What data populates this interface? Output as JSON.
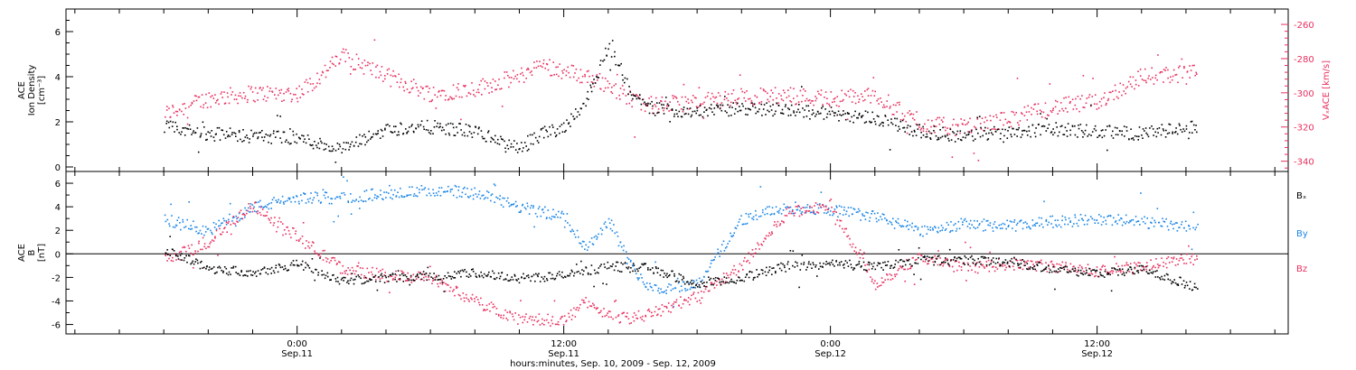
{
  "colors": {
    "black": "#000000",
    "pink": "#e8305f",
    "blue": "#1a85e6"
  },
  "xaxis": {
    "title": "hours:minutes, Sep. 10, 2009 - Sep. 12, 2009",
    "ticks": [
      {
        "time": "0:00",
        "date": "Sep.11"
      },
      {
        "time": "12:00",
        "date": "Sep.11"
      },
      {
        "time": "0:00",
        "date": "Sep.12"
      },
      {
        "time": "12:00",
        "date": "Sep.12"
      }
    ]
  },
  "chart_data": [
    {
      "type": "scatter",
      "panel": "top",
      "ylabel_left": [
        "ACE",
        "Ion Density",
        "[cm⁻³]"
      ],
      "ylabel_right": "VₓACE [km/s]",
      "ylim_left": [
        -0.2,
        7.0
      ],
      "yticks_left": [
        "0",
        "2",
        "4",
        "6"
      ],
      "ylim_right": [
        -346,
        -251
      ],
      "yticks_right": [
        "-260",
        "-280",
        "-300",
        "-320",
        "-340"
      ],
      "series": [
        {
          "name": "Ion Density",
          "color": "black",
          "axis": "left",
          "x_hours": [
            -6,
            -4,
            -2,
            0,
            2,
            4,
            6,
            8,
            10,
            11,
            12,
            13,
            14,
            14.5,
            15,
            16,
            18,
            20,
            22,
            24,
            26,
            28,
            30,
            32,
            34,
            36,
            38,
            40.5
          ],
          "y": [
            1.8,
            1.5,
            1.4,
            1.3,
            0.8,
            1.7,
            1.8,
            1.6,
            0.8,
            1.5,
            1.8,
            3.0,
            5.4,
            4.5,
            3.2,
            2.6,
            2.5,
            2.6,
            2.6,
            2.4,
            2.2,
            1.6,
            1.4,
            1.6,
            1.7,
            1.6,
            1.5,
            1.8
          ]
        },
        {
          "name": "Vx",
          "color": "pink",
          "axis": "right",
          "x_hours": [
            -6,
            -4,
            -2,
            0,
            1,
            2,
            4,
            6,
            8,
            10,
            11,
            12,
            13,
            14,
            15,
            16,
            18,
            20,
            22,
            24,
            26,
            28,
            30,
            32,
            34,
            36,
            38,
            40.5
          ],
          "y": [
            -312,
            -303,
            -300,
            -300,
            -290,
            -278,
            -290,
            -300,
            -297,
            -290,
            -283,
            -287,
            -290,
            -295,
            -303,
            -307,
            -305,
            -302,
            -301,
            -303,
            -301,
            -318,
            -320,
            -315,
            -308,
            -305,
            -290,
            -288
          ]
        }
      ]
    },
    {
      "type": "scatter",
      "panel": "bottom",
      "ylabel_left": [
        "ACE",
        "B",
        "[nT]"
      ],
      "ylim": [
        -6.8,
        7.0
      ],
      "yticks": [
        "6",
        "4",
        "2",
        "0",
        "-2",
        "-4",
        "-6"
      ],
      "zero_line": true,
      "legend": [
        "Bₓ",
        "By",
        "Bz"
      ],
      "series": [
        {
          "name": "Bx",
          "color": "black",
          "x_hours": [
            -6,
            -4,
            -2,
            0,
            2,
            4,
            6,
            8,
            10,
            12,
            14,
            16,
            18,
            20,
            22,
            24,
            26,
            28,
            30,
            32,
            34,
            36,
            38,
            40.5
          ],
          "y": [
            0.5,
            -1.2,
            -1.5,
            -0.8,
            -2.2,
            -2.0,
            -1.8,
            -1.6,
            -2.0,
            -1.8,
            -1.0,
            -1.2,
            -2.6,
            -2.0,
            -1.0,
            -0.8,
            -1.0,
            -0.5,
            -0.5,
            -0.6,
            -1.2,
            -1.6,
            -1.3,
            -2.8
          ]
        },
        {
          "name": "By",
          "color": "blue",
          "x_hours": [
            -6,
            -4,
            -2,
            0,
            2,
            4,
            6,
            8,
            10,
            12,
            13,
            14,
            15,
            16,
            18,
            20,
            22,
            24,
            26,
            28,
            30,
            32,
            34,
            36,
            38,
            40.5
          ],
          "y": [
            3.0,
            2.0,
            4.0,
            4.8,
            4.8,
            5.2,
            5.4,
            5.2,
            4.0,
            3.2,
            0.5,
            3.0,
            -1.0,
            -3.0,
            -2.5,
            3.0,
            4.0,
            3.8,
            3.2,
            2.0,
            2.6,
            2.4,
            2.8,
            3.0,
            2.8,
            2.2
          ]
        },
        {
          "name": "Bz",
          "color": "pink",
          "x_hours": [
            -6,
            -4,
            -2,
            0,
            2,
            4,
            6,
            8,
            10,
            12,
            13,
            14,
            15,
            16,
            18,
            20,
            22,
            24,
            26,
            28,
            30,
            32,
            34,
            36,
            38,
            40.5
          ],
          "y": [
            -0.5,
            1.0,
            4.2,
            1.5,
            -1.2,
            -1.8,
            -2.0,
            -4.0,
            -5.5,
            -5.6,
            -4.0,
            -5.2,
            -5.4,
            -5.0,
            -3.5,
            -1.0,
            3.5,
            4.2,
            -2.5,
            -0.2,
            -1.2,
            -0.8,
            -1.0,
            -1.4,
            -1.0,
            -0.3
          ]
        }
      ]
    }
  ]
}
